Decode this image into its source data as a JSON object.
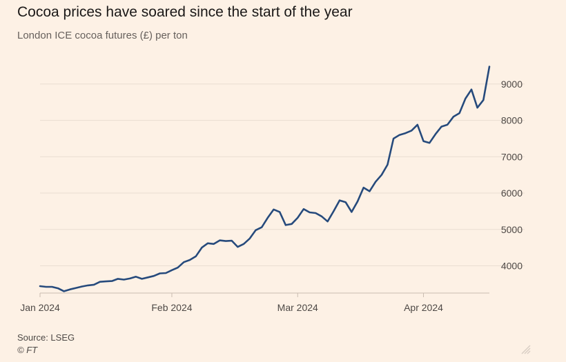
{
  "title": "Cocoa prices have soared since the start of the year",
  "subtitle": "London ICE cocoa futures (£) per ton",
  "source": "Source: LSEG",
  "credit": "© FT",
  "colors": {
    "background": "#fdf1e5",
    "line": "#264a7c",
    "grid": "#e9ddd1",
    "axis": "#c9bcb0",
    "text": "#4d4845"
  },
  "chart_data": {
    "type": "line",
    "title": "Cocoa prices have soared since the start of the year",
    "ylabel": "London ICE cocoa futures (£) per ton",
    "xlabel": "",
    "ylim": [
      3250,
      9700
    ],
    "yticks": [
      4000,
      5000,
      6000,
      7000,
      8000,
      9000
    ],
    "ytick_labels": [
      "4000",
      "5000",
      "6000",
      "7000",
      "8000",
      "9000"
    ],
    "xticks": [
      {
        "label": "Jan 2024",
        "index": 0
      },
      {
        "label": "Feb 2024",
        "index": 22
      },
      {
        "label": "Mar 2024",
        "index": 43
      },
      {
        "label": "Apr 2024",
        "index": 64
      }
    ],
    "grid": true,
    "series": [
      {
        "name": "London ICE cocoa futures",
        "values": [
          3440,
          3420,
          3420,
          3380,
          3300,
          3350,
          3390,
          3430,
          3460,
          3480,
          3560,
          3570,
          3580,
          3640,
          3620,
          3650,
          3700,
          3640,
          3680,
          3720,
          3790,
          3800,
          3880,
          3950,
          4100,
          4160,
          4260,
          4500,
          4620,
          4600,
          4700,
          4680,
          4690,
          4520,
          4600,
          4750,
          4980,
          5060,
          5320,
          5550,
          5480,
          5120,
          5150,
          5320,
          5560,
          5470,
          5450,
          5360,
          5220,
          5500,
          5800,
          5750,
          5480,
          5770,
          6150,
          6050,
          6310,
          6500,
          6780,
          7500,
          7600,
          7650,
          7720,
          7880,
          7430,
          7380,
          7620,
          7830,
          7880,
          8100,
          8200,
          8600,
          8850,
          8350,
          8560,
          9480
        ]
      }
    ]
  }
}
